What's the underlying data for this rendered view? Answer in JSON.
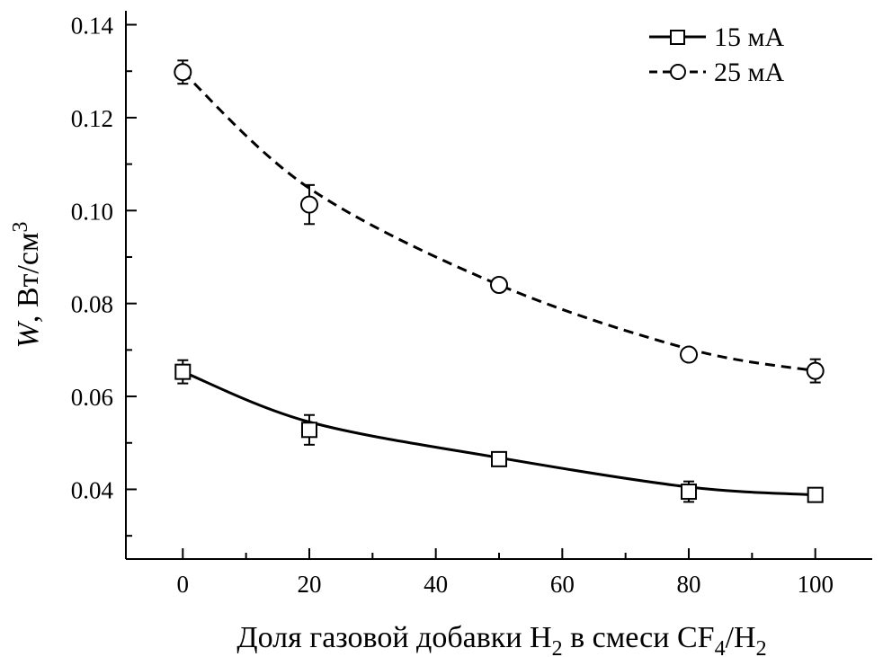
{
  "chart_data": {
    "type": "line",
    "xlabel": "Доля газовой добавки H2 в смеси CF4/H2",
    "xlabel_parts": {
      "p1": "Доля газовой добавки H",
      "s1": "2",
      "p2": " в смеси CF",
      "s2": "4",
      "p3": "/H",
      "s3": "2"
    },
    "ylabel": "W, Вт/см3",
    "ylabel_parts": {
      "var": "W",
      "unit": ", Вт/см",
      "sup": "3"
    },
    "xlim": [
      -9,
      109
    ],
    "ylim": [
      0.025,
      0.143
    ],
    "x_ticks": [
      0,
      20,
      40,
      60,
      80,
      100
    ],
    "x_tick_labels": [
      "0",
      "20",
      "40",
      "60",
      "80",
      "100"
    ],
    "x_minor_ticks": [
      10,
      30,
      50,
      70,
      90
    ],
    "y_ticks": [
      0.04,
      0.06,
      0.08,
      0.1,
      0.12,
      0.14
    ],
    "y_tick_labels": [
      "0.04",
      "0.06",
      "0.08",
      "0.10",
      "0.12",
      "0.14"
    ],
    "y_minor_ticks": [
      0.03,
      0.05,
      0.07,
      0.09,
      0.11,
      0.13
    ],
    "legend_position": "top-right",
    "series": [
      {
        "name": "15 мА",
        "marker": "square",
        "line_style": "solid",
        "x": [
          0,
          20,
          50,
          80,
          100
        ],
        "y": [
          0.0653,
          0.0528,
          0.0465,
          0.0395,
          0.0388
        ],
        "err": [
          0.0025,
          0.0032,
          0.0008,
          0.0022,
          0.0008
        ],
        "fit": [
          0.0653,
          0.0545,
          0.0468,
          0.0405,
          0.0388
        ]
      },
      {
        "name": "25 мА",
        "marker": "circle",
        "line_style": "dashed",
        "x": [
          0,
          20,
          50,
          80,
          100
        ],
        "y": [
          0.1298,
          0.1013,
          0.084,
          0.069,
          0.0655
        ],
        "err": [
          0.0025,
          0.0042,
          0.0008,
          0.001,
          0.0025
        ],
        "fit": [
          0.1298,
          0.1048,
          0.084,
          0.0702,
          0.0655
        ]
      }
    ]
  }
}
